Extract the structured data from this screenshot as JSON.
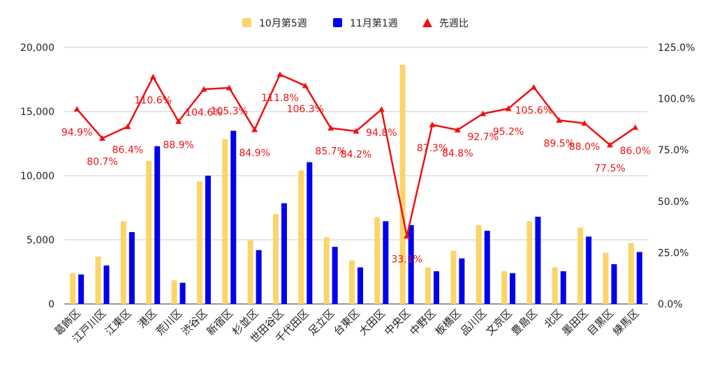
{
  "chart_data": {
    "type": "bar",
    "categories": [
      "葛飾区",
      "江戸川区",
      "江東区",
      "港区",
      "荒川区",
      "渋谷区",
      "新宿区",
      "杉並区",
      "世田谷区",
      "千代田区",
      "足立区",
      "台東区",
      "大田区",
      "中央区",
      "中野区",
      "板橋区",
      "品川区",
      "文京区",
      "豊島区",
      "北区",
      "墨田区",
      "目黒区",
      "練馬区"
    ],
    "series": [
      {
        "name": "10月第5週",
        "type": "bar",
        "axis": "left",
        "color": "#fbd56a",
        "values": [
          2400,
          3700,
          6450,
          11150,
          1850,
          9550,
          12850,
          4950,
          7000,
          10400,
          5200,
          3400,
          6750,
          18650,
          2850,
          4150,
          6150,
          2550,
          6450,
          2850,
          5950,
          4000,
          4750
        ]
      },
      {
        "name": "11月第1週",
        "type": "bar",
        "axis": "right-none",
        "color": "#0000ee",
        "values": [
          2300,
          3000,
          5600,
          12300,
          1650,
          10000,
          13500,
          4200,
          7850,
          11050,
          4450,
          2850,
          6450,
          6150,
          2550,
          3550,
          5700,
          2400,
          6800,
          2550,
          5250,
          3100,
          4050
        ]
      },
      {
        "name": "先週比",
        "type": "line",
        "axis": "right",
        "color": "#ee1111",
        "values": [
          94.9,
          80.7,
          86.4,
          110.6,
          88.9,
          104.6,
          105.3,
          84.9,
          111.8,
          106.3,
          85.7,
          84.2,
          94.8,
          33.1,
          87.3,
          84.8,
          92.7,
          95.2,
          105.6,
          89.5,
          88.0,
          77.5,
          86.0
        ],
        "labels": [
          "94.9%",
          "80.7%",
          "86.4%",
          "110.6%",
          "88.9%",
          "104.6%",
          "105.3%",
          "84.9%",
          "111.8%",
          "106.3%",
          "85.7%",
          "84.2%",
          "94.8%",
          "33.1%",
          "87.3%",
          "84.8%",
          "92.7%",
          "95.2%",
          "105.6%",
          "89.5%",
          "88.0%",
          "77.5%",
          "86.0%"
        ]
      }
    ],
    "ylim_left": [
      0,
      20000
    ],
    "yticks_left": [
      "0",
      "5,000",
      "10,000",
      "15,000",
      "20,000"
    ],
    "ylim_right": [
      0,
      125
    ],
    "yticks_right": [
      "0.0%",
      "25.0%",
      "50.0%",
      "75.0%",
      "100.0%",
      "125.0%"
    ],
    "grid": true,
    "legend_position": "top-center"
  }
}
